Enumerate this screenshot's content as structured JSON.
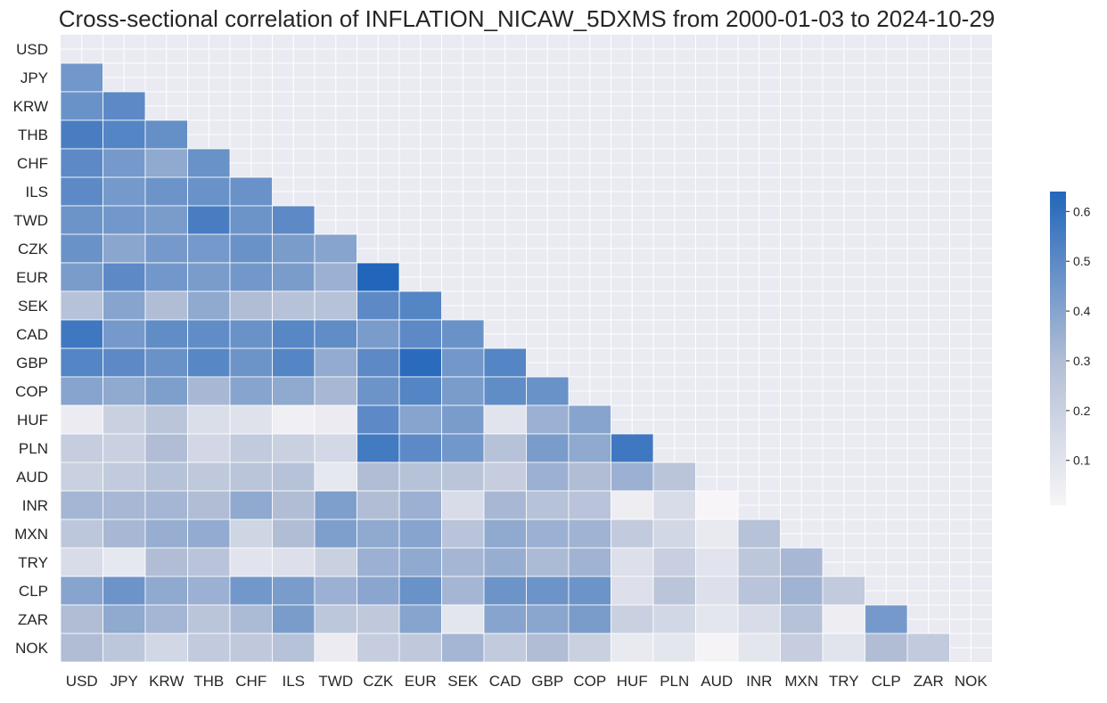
{
  "chart_data": {
    "type": "heatmap",
    "title": "Cross-sectional correlation of INFLATION_NICAW_5DXMS from 2000-01-03 to 2024-10-29",
    "mask": "lower-triangle",
    "labels": [
      "USD",
      "JPY",
      "KRW",
      "THB",
      "CHF",
      "ILS",
      "TWD",
      "CZK",
      "EUR",
      "SEK",
      "CAD",
      "GBP",
      "COP",
      "HUF",
      "PLN",
      "AUD",
      "INR",
      "MXN",
      "TRY",
      "CLP",
      "ZAR",
      "NOK"
    ],
    "matrix": [
      [],
      [
        0.45
      ],
      [
        0.47,
        0.5
      ],
      [
        0.55,
        0.52,
        0.48
      ],
      [
        0.5,
        0.44,
        0.38,
        0.47
      ],
      [
        0.5,
        0.44,
        0.46,
        0.47,
        0.47
      ],
      [
        0.46,
        0.45,
        0.43,
        0.55,
        0.46,
        0.5
      ],
      [
        0.47,
        0.39,
        0.44,
        0.44,
        0.47,
        0.43,
        0.4
      ],
      [
        0.43,
        0.5,
        0.45,
        0.43,
        0.45,
        0.43,
        0.35,
        0.64
      ],
      [
        0.28,
        0.4,
        0.3,
        0.38,
        0.3,
        0.28,
        0.28,
        0.5,
        0.52
      ],
      [
        0.57,
        0.44,
        0.49,
        0.49,
        0.47,
        0.51,
        0.49,
        0.43,
        0.5,
        0.47
      ],
      [
        0.52,
        0.5,
        0.47,
        0.51,
        0.46,
        0.52,
        0.37,
        0.5,
        0.62,
        0.45,
        0.52
      ],
      [
        0.4,
        0.38,
        0.42,
        0.32,
        0.4,
        0.38,
        0.32,
        0.46,
        0.52,
        0.43,
        0.49,
        0.47
      ],
      [
        0.06,
        0.2,
        0.26,
        0.13,
        0.11,
        0.04,
        0.06,
        0.5,
        0.4,
        0.43,
        0.1,
        0.35,
        0.4
      ],
      [
        0.22,
        0.2,
        0.3,
        0.17,
        0.23,
        0.2,
        0.16,
        0.56,
        0.5,
        0.45,
        0.28,
        0.43,
        0.38,
        0.57
      ],
      [
        0.2,
        0.23,
        0.28,
        0.24,
        0.26,
        0.28,
        0.08,
        0.3,
        0.28,
        0.26,
        0.22,
        0.35,
        0.3,
        0.35,
        0.26
      ],
      [
        0.33,
        0.32,
        0.33,
        0.3,
        0.38,
        0.3,
        0.42,
        0.3,
        0.35,
        0.14,
        0.32,
        0.28,
        0.27,
        0.05,
        0.14,
        0.01
      ],
      [
        0.25,
        0.32,
        0.36,
        0.37,
        0.18,
        0.3,
        0.42,
        0.38,
        0.4,
        0.27,
        0.38,
        0.35,
        0.34,
        0.23,
        0.17,
        0.07,
        0.28
      ],
      [
        0.14,
        0.08,
        0.3,
        0.27,
        0.1,
        0.12,
        0.2,
        0.35,
        0.38,
        0.33,
        0.36,
        0.31,
        0.34,
        0.12,
        0.21,
        0.1,
        0.25,
        0.32
      ],
      [
        0.4,
        0.46,
        0.38,
        0.35,
        0.45,
        0.43,
        0.35,
        0.39,
        0.47,
        0.33,
        0.46,
        0.46,
        0.46,
        0.12,
        0.26,
        0.12,
        0.27,
        0.34,
        0.23
      ],
      [
        0.3,
        0.38,
        0.33,
        0.26,
        0.31,
        0.43,
        0.25,
        0.24,
        0.4,
        0.09,
        0.4,
        0.39,
        0.43,
        0.2,
        0.17,
        0.09,
        0.14,
        0.28,
        0.05,
        0.44
      ],
      [
        0.3,
        0.25,
        0.17,
        0.23,
        0.24,
        0.28,
        0.06,
        0.22,
        0.24,
        0.33,
        0.23,
        0.3,
        0.2,
        0.07,
        0.09,
        0.02,
        0.09,
        0.22,
        0.1,
        0.3,
        0.23
      ]
    ],
    "colorbar": {
      "min": 0.01,
      "max": 0.64,
      "ticks": [
        "0.1",
        "0.2",
        "0.3",
        "0.4",
        "0.5",
        "0.6"
      ],
      "tick_values": [
        0.1,
        0.2,
        0.3,
        0.4,
        0.5,
        0.6
      ],
      "color_low": "#f7f5f7",
      "color_mid": "#b3bfd6",
      "color_high": "#2266bb"
    },
    "grid": true,
    "background": "#eaeaf2"
  }
}
